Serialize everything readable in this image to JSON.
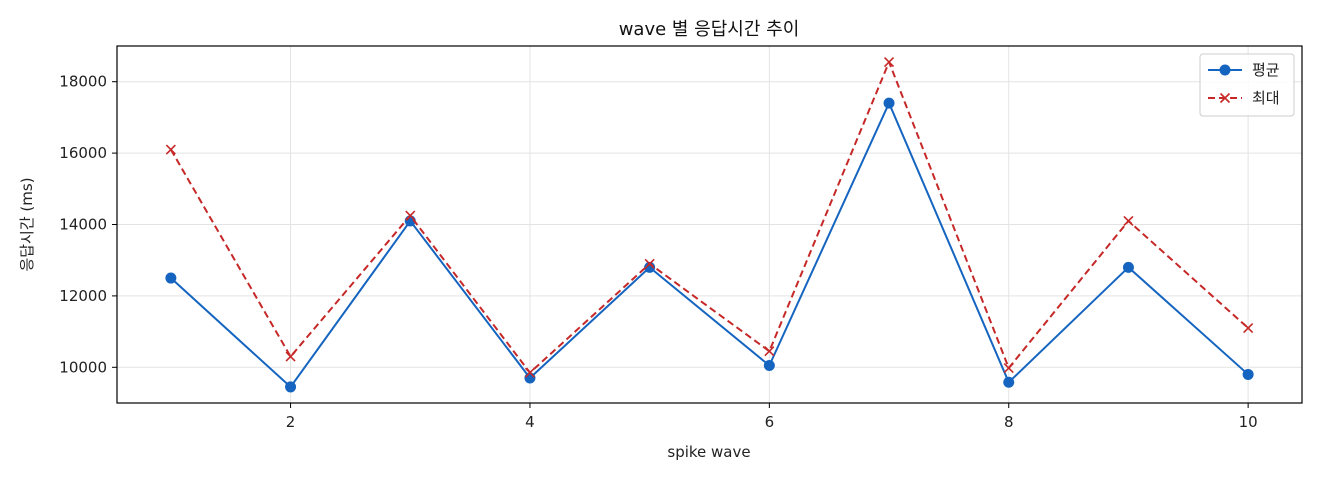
{
  "chart_data": {
    "type": "line",
    "title": "wave 별 응답시간 추이",
    "xlabel": "spike wave",
    "ylabel": "응답시간 (ms)",
    "x": [
      1,
      2,
      3,
      4,
      5,
      6,
      7,
      8,
      9,
      10
    ],
    "x_ticks": [
      2,
      4,
      6,
      8,
      10
    ],
    "x_tick_labels": [
      "2",
      "4",
      "6",
      "8",
      "10"
    ],
    "y_ticks": [
      10000,
      12000,
      14000,
      16000,
      18000
    ],
    "y_tick_labels": [
      "10000",
      "12000",
      "14000",
      "16000",
      "18000"
    ],
    "xlim": [
      0.55,
      10.45
    ],
    "ylim": [
      9000,
      19000
    ],
    "grid": true,
    "legend_position": "top-right",
    "series": [
      {
        "name": "평균",
        "values": [
          12500,
          9450,
          14100,
          9700,
          12800,
          10050,
          17400,
          9580,
          12800,
          9800
        ],
        "color": "#1565c0",
        "line_style": "solid",
        "marker": "circle"
      },
      {
        "name": "최대",
        "values": [
          16100,
          10300,
          14250,
          9850,
          12900,
          10450,
          18550,
          9980,
          14100,
          11100
        ],
        "color": "#c62828",
        "line_style": "dashed",
        "marker": "x"
      }
    ]
  }
}
